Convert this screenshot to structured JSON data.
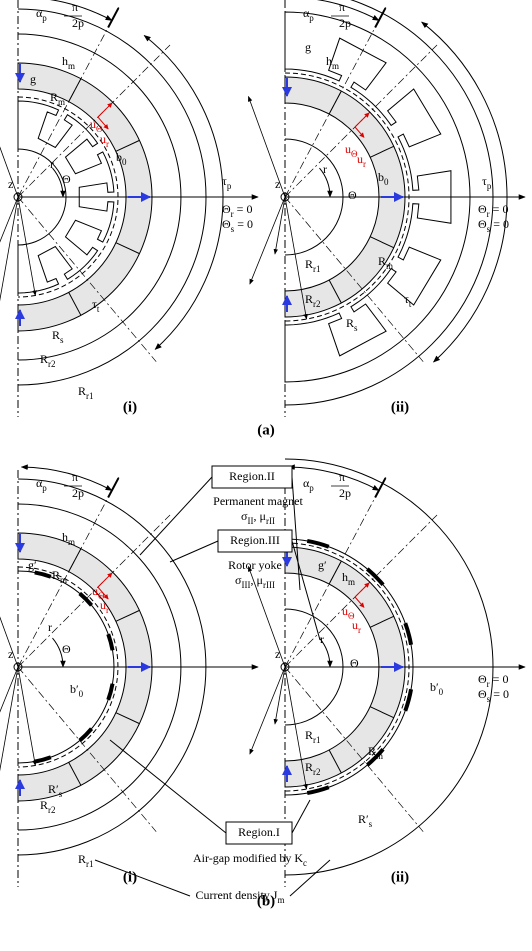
{
  "figure_a": {
    "caption": "(a)",
    "panels": [
      {
        "caption": "(i)",
        "labels": {
          "alpha": "α_p",
          "pi": "π",
          "den": "2p",
          "hm": "h_m",
          "g": "g",
          "Rm": "R_m",
          "uth": "u_Θ",
          "ur": "u_r",
          "r": "r",
          "theta": "Θ",
          "b0": "b_0",
          "z": "z",
          "taup": "τ_p",
          "thr": "Θ_r = 0",
          "ths": "Θ_s = 0",
          "taut": "τ_t",
          "Rs": "R_s",
          "Rr2": "R_r2",
          "Rr1": "R_r1"
        }
      },
      {
        "caption": "(ii)",
        "labels": {
          "alpha": "α_p",
          "pi": "π",
          "den": "2p",
          "g": "g",
          "hm": "h_m",
          "uth": "u_Θ",
          "ur": "u_r",
          "b0": "b_0",
          "r": "r",
          "theta": "Θ",
          "z": "z",
          "taup": "τ_p",
          "thr": "Θ_r = 0",
          "ths": "Θ_s = 0",
          "Rr1": "R_r1",
          "Rm": "R_m",
          "taut": "τ_t",
          "Rr2": "R_r2",
          "Rs": "R_s"
        }
      }
    ]
  },
  "figure_b": {
    "caption": "(b)",
    "panels": [
      {
        "caption": "(i)",
        "labels": {
          "alpha": "α_p",
          "pi": "π",
          "den": "2p",
          "hm": "h_m",
          "gp": "g′",
          "Rm": "R_m",
          "uth": "u_Θ",
          "ur": "u_r",
          "r": "r",
          "bp": "b′_0",
          "theta": "Θ",
          "z": "z",
          "Rsp": "R′_s",
          "Rr2": "R_r2",
          "Rr1": "R_r1"
        }
      },
      {
        "caption": "(ii)",
        "labels": {
          "alpha": "α_p",
          "pi": "π",
          "den": "2p",
          "gp": "g′",
          "hm": "h_m",
          "uth": "u_Θ",
          "ur": "u_r",
          "bp": "b′_0",
          "r": "r",
          "theta": "Θ",
          "z": "z",
          "thr": "Θ_r = 0",
          "ths": "Θ_s = 0",
          "Rr1": "R_r1",
          "Rm": "R_m",
          "Rr2": "R_r2",
          "Rsp": "R′_s"
        }
      }
    ],
    "regions": {
      "region2": {
        "name": "Region.II",
        "desc": "Permanent magnet",
        "params": "σ_II, μ_rII"
      },
      "region3": {
        "name": "Region.III",
        "desc": "Rotor yoke",
        "params": "σ_III, μ_rIII"
      },
      "region1": {
        "name": "Region.I",
        "desc": "Air-gap modified by K_c"
      },
      "current": "Current density J_m"
    }
  }
}
